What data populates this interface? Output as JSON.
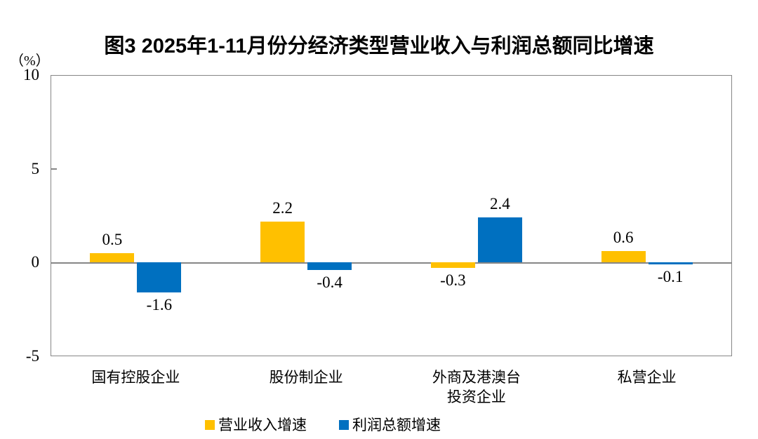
{
  "chart_data": {
    "type": "bar",
    "title": "图3 2025年1-11月份分经济类型营业收入与利润总额同比增速",
    "unit_label": "（%）",
    "categories": [
      "国有控股企业",
      "股份制企业",
      "外商及港澳台\n投资企业",
      "私营企业"
    ],
    "series": [
      {
        "name": "营业收入增速",
        "color": "#FFC000",
        "values": [
          0.5,
          2.2,
          -0.3,
          0.6
        ]
      },
      {
        "name": "利润总额增速",
        "color": "#0070C0",
        "values": [
          -1.6,
          -0.4,
          2.4,
          -0.1
        ]
      }
    ],
    "ylim": [
      -5,
      10
    ],
    "yticks": [
      10,
      5,
      0,
      -5
    ],
    "zero_line": true,
    "value_labels": true,
    "legend_position": "bottom",
    "axis_color": "#868686",
    "background": "#ffffff"
  }
}
